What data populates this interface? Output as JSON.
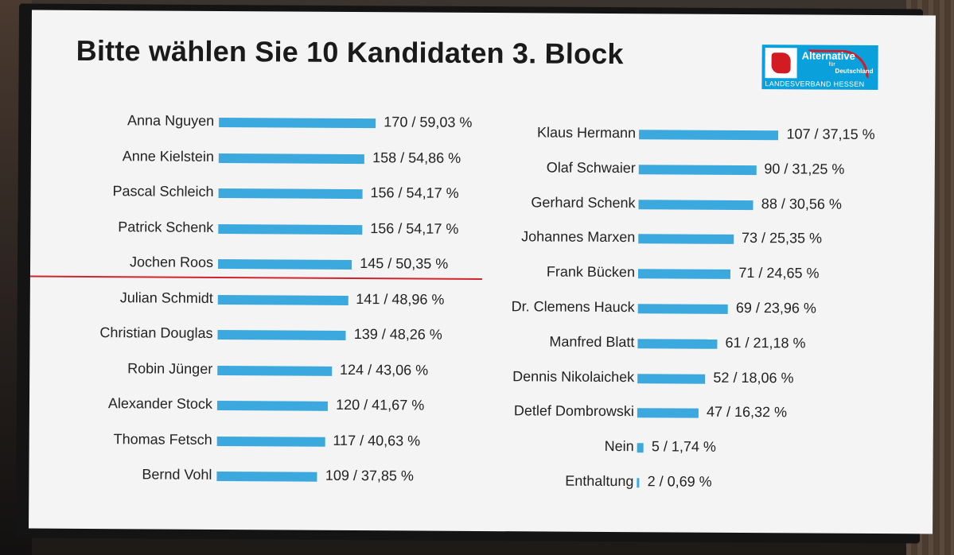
{
  "chart_data": {
    "type": "bar",
    "orientation": "horizontal",
    "title": "Bitte wählen Sie 10 Kandidaten 3. Block",
    "columns": [
      {
        "rows": [
          {
            "name": "Anna Nguyen",
            "votes": 170,
            "percent": "59,03 %",
            "label": "170 / 59,03 %"
          },
          {
            "name": "Anne Kielstein",
            "votes": 158,
            "percent": "54,86 %",
            "label": "158 / 54,86 %"
          },
          {
            "name": "Pascal Schleich",
            "votes": 156,
            "percent": "54,17 %",
            "label": "156 / 54,17 %"
          },
          {
            "name": "Patrick Schenk",
            "votes": 156,
            "percent": "54,17 %",
            "label": "156 / 54,17 %"
          },
          {
            "name": "Jochen Roos",
            "votes": 145,
            "percent": "50,35 %",
            "label": "145 / 50,35 %"
          },
          {
            "name": "Julian Schmidt",
            "votes": 141,
            "percent": "48,96 %",
            "label": "141 / 48,96 %"
          },
          {
            "name": "Christian Douglas",
            "votes": 139,
            "percent": "48,26 %",
            "label": "139 / 48,26 %"
          },
          {
            "name": "Robin Jünger",
            "votes": 124,
            "percent": "43,06 %",
            "label": "124 / 43,06 %"
          },
          {
            "name": "Alexander Stock",
            "votes": 120,
            "percent": "41,67 %",
            "label": "120 / 41,67 %"
          },
          {
            "name": "Thomas Fetsch",
            "votes": 117,
            "percent": "40,63 %",
            "label": "117 / 40,63 %"
          },
          {
            "name": "Bernd Vohl",
            "votes": 109,
            "percent": "37,85 %",
            "label": "109 / 37,85 %"
          }
        ],
        "cutoff_after": 5
      },
      {
        "rows": [
          {
            "name": "Klaus Hermann",
            "votes": 107,
            "percent": "37,15 %",
            "label": "107 / 37,15 %"
          },
          {
            "name": "Olaf Schwaier",
            "votes": 90,
            "percent": "31,25 %",
            "label": "90 / 31,25 %"
          },
          {
            "name": "Gerhard Schenk",
            "votes": 88,
            "percent": "30,56 %",
            "label": "88 / 30,56 %"
          },
          {
            "name": "Johannes Marxen",
            "votes": 73,
            "percent": "25,35 %",
            "label": "73 / 25,35 %"
          },
          {
            "name": "Frank Bücken",
            "votes": 71,
            "percent": "24,65 %",
            "label": "71 / 24,65 %"
          },
          {
            "name": "Dr. Clemens Hauck",
            "votes": 69,
            "percent": "23,96 %",
            "label": "69 / 23,96 %"
          },
          {
            "name": "Manfred Blatt",
            "votes": 61,
            "percent": "21,18 %",
            "label": "61 / 21,18 %"
          },
          {
            "name": "Dennis Nikolaichek",
            "votes": 52,
            "percent": "18,06 %",
            "label": "52 / 18,06 %"
          },
          {
            "name": "Detlef Dombrowski",
            "votes": 47,
            "percent": "16,32 %",
            "label": "47 / 16,32 %"
          },
          {
            "name": "Nein",
            "votes": 5,
            "percent": "1,74 %",
            "label": "5 / 1,74 %"
          },
          {
            "name": "Enthaltung",
            "votes": 2,
            "percent": "0,69 %",
            "label": "2 / 0,69 %"
          }
        ]
      }
    ],
    "bar_color": "#3ba9de",
    "cutoff_line_color": "#d2252b",
    "grid": false,
    "legend": "none"
  },
  "logo": {
    "line1": "Alternative",
    "line2": "für",
    "line3": "Deutschland",
    "line4": "LANDESVERBAND HESSEN",
    "emblem": "hessen-lion-icon",
    "color": "#0aa0dc"
  }
}
